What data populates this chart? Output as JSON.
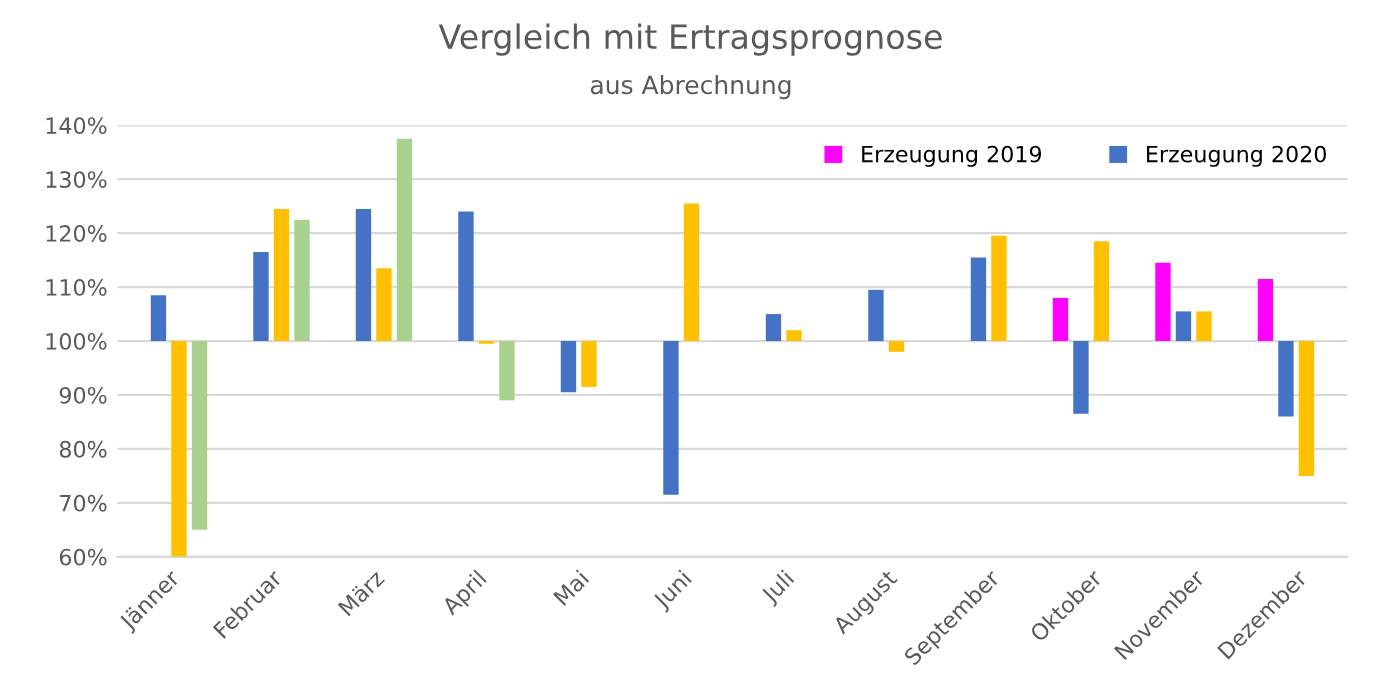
{
  "chart_data": {
    "type": "bar",
    "title": "Vergleich mit Ertragsprognose",
    "subtitle": "aus Abrechnung",
    "categories": [
      "Jänner",
      "Februar",
      "März",
      "April",
      "Mai",
      "Juni",
      "Juli",
      "August",
      "September",
      "Oktober",
      "November",
      "Dezember"
    ],
    "series": [
      {
        "name": "Erzeugung 2019",
        "color": "#ff00ff",
        "base": [
          null,
          null,
          null,
          null,
          null,
          null,
          null,
          null,
          null,
          100,
          100,
          100
        ],
        "values": [
          null,
          null,
          null,
          null,
          null,
          null,
          null,
          null,
          null,
          8,
          14.5,
          11.5
        ]
      },
      {
        "name": "Erzeugung 2020",
        "color": "#4472c4",
        "base": [
          100,
          100,
          100,
          100,
          100,
          100,
          100,
          100,
          100,
          100,
          100,
          100
        ],
        "values": [
          8.5,
          16.5,
          24.5,
          24,
          -9.5,
          -28.5,
          5,
          9.5,
          15.5,
          -13.5,
          5.5,
          -14
        ]
      },
      {
        "color": "#ffc000",
        "base": [
          100,
          100,
          100,
          100,
          100,
          100,
          100,
          100,
          100,
          100,
          100,
          100
        ],
        "values": [
          -40,
          24.5,
          13.5,
          -0.5,
          -8.5,
          25.5,
          2,
          -2,
          19.5,
          18.5,
          5.5,
          -25
        ]
      },
      {
        "color": "#a9d18e",
        "base": [
          100,
          100,
          100,
          100,
          null,
          null,
          null,
          null,
          null,
          null,
          null,
          null
        ],
        "values": [
          -35,
          22.5,
          37.5,
          -11,
          null,
          null,
          null,
          null,
          null,
          null,
          null,
          null
        ]
      }
    ],
    "ylim": [
      60,
      140
    ],
    "yticks": [
      {
        "value": 60,
        "label": "60%"
      },
      {
        "value": 70,
        "label": "70%"
      },
      {
        "value": 80,
        "label": "80%"
      },
      {
        "value": 90,
        "label": "90%"
      },
      {
        "value": 100,
        "label": "100%"
      },
      {
        "value": 110,
        "label": "110%"
      },
      {
        "value": 120,
        "label": "120%"
      },
      {
        "value": 130,
        "label": "130%"
      },
      {
        "value": 140,
        "label": "140%"
      }
    ],
    "grid": "y",
    "legend": "top right"
  }
}
